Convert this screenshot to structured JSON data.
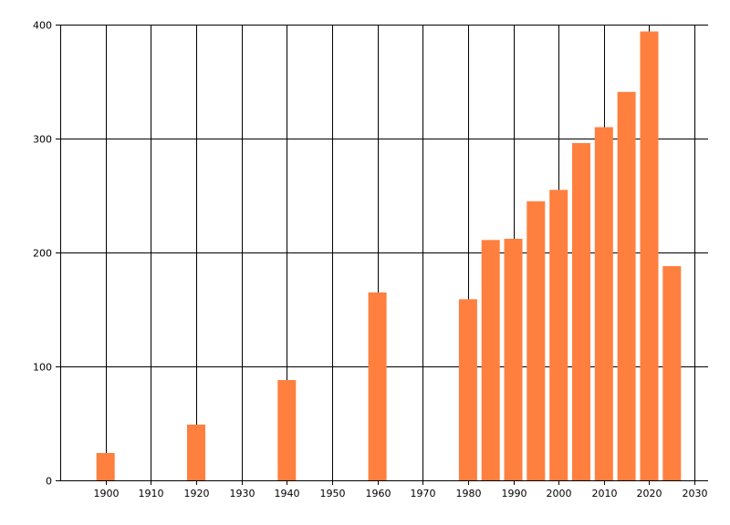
{
  "chart_data": {
    "type": "bar",
    "x": [
      1900,
      1920,
      1940,
      1960,
      1980,
      1985,
      1990,
      1995,
      2000,
      2005,
      2010,
      2015,
      2020,
      2025
    ],
    "values": [
      24,
      49,
      88,
      165,
      159,
      211,
      212,
      245,
      255,
      296,
      310,
      341,
      394,
      188
    ],
    "xlim": [
      1890,
      2033
    ],
    "ylim": [
      0,
      400
    ],
    "xticks": [
      1900,
      1910,
      1920,
      1930,
      1940,
      1950,
      1960,
      1970,
      1980,
      1990,
      2000,
      2010,
      2020,
      2030
    ],
    "yticks": [
      0,
      100,
      200,
      300,
      400
    ],
    "grid": true,
    "title": "",
    "xlabel": "",
    "ylabel": "",
    "colors": {
      "bar": "#ff7f3f",
      "grid": "#000000"
    }
  }
}
